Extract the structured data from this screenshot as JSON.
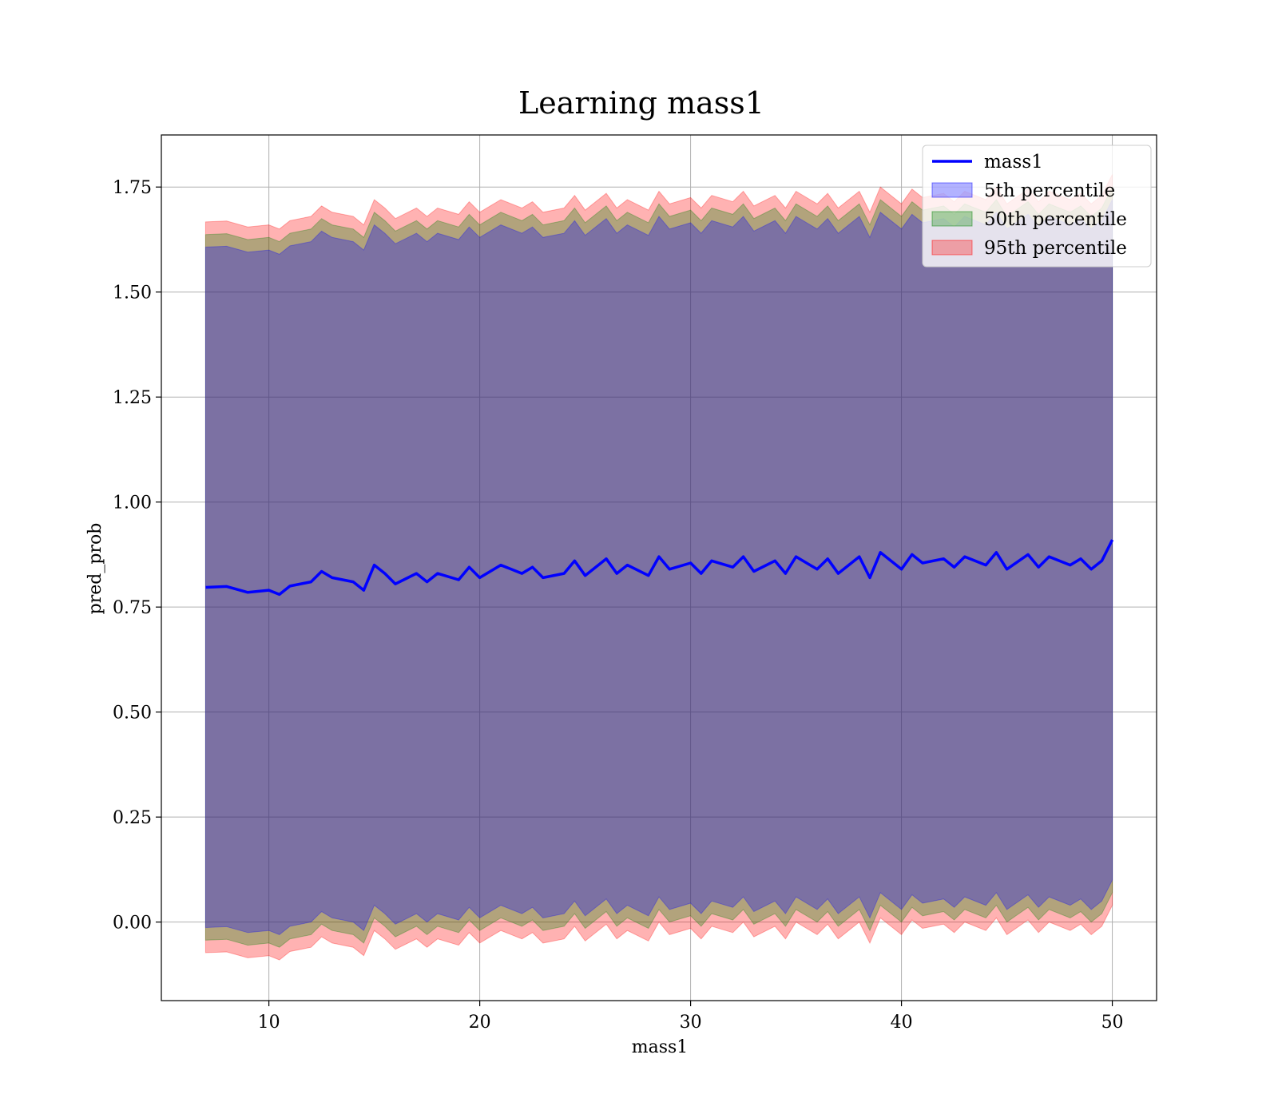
{
  "chart_data": {
    "type": "area",
    "title": "Learning mass1",
    "xlabel": "mass1",
    "ylabel": "pred_prob",
    "xlim": [
      4.9,
      52.1
    ],
    "ylim": [
      -0.187,
      1.874
    ],
    "xticks": [
      10,
      20,
      30,
      40,
      50
    ],
    "xtick_labels": [
      "10",
      "20",
      "30",
      "40",
      "50"
    ],
    "yticks": [
      0.0,
      0.25,
      0.5,
      0.75,
      1.0,
      1.25,
      1.5,
      1.75
    ],
    "ytick_labels": [
      "0.00",
      "0.25",
      "0.50",
      "0.75",
      "1.00",
      "1.25",
      "1.50",
      "1.75"
    ],
    "grid": true,
    "legend_position": "top-right",
    "x": [
      7,
      8,
      9,
      10,
      10.5,
      11,
      12,
      12.5,
      13,
      14,
      14.5,
      15,
      15.5,
      16,
      17,
      17.5,
      18,
      19,
      19.5,
      20,
      21,
      22,
      22.5,
      23,
      24,
      24.5,
      25,
      26,
      26.5,
      27,
      28,
      28.5,
      29,
      30,
      30.5,
      31,
      32,
      32.5,
      33,
      34,
      34.5,
      35,
      36,
      36.5,
      37,
      38,
      38.5,
      39,
      40,
      40.5,
      41,
      42,
      42.5,
      43,
      44,
      44.5,
      45,
      46,
      46.5,
      47,
      48,
      48.5,
      49,
      49.5,
      50
    ],
    "series": [
      {
        "name": "mass1",
        "kind": "line",
        "color": "#0000ff",
        "values": [
          0.797,
          0.799,
          0.785,
          0.79,
          0.78,
          0.8,
          0.81,
          0.835,
          0.82,
          0.81,
          0.79,
          0.85,
          0.83,
          0.805,
          0.83,
          0.81,
          0.83,
          0.815,
          0.845,
          0.82,
          0.85,
          0.83,
          0.845,
          0.82,
          0.83,
          0.86,
          0.825,
          0.865,
          0.83,
          0.85,
          0.825,
          0.87,
          0.84,
          0.855,
          0.83,
          0.86,
          0.845,
          0.87,
          0.835,
          0.86,
          0.83,
          0.87,
          0.84,
          0.865,
          0.83,
          0.87,
          0.82,
          0.88,
          0.84,
          0.875,
          0.855,
          0.865,
          0.845,
          0.87,
          0.85,
          0.88,
          0.84,
          0.875,
          0.845,
          0.87,
          0.85,
          0.865,
          0.84,
          0.86,
          0.91
        ]
      },
      {
        "name": "5th percentile",
        "kind": "band",
        "color": "#0000ff",
        "spread": 0.81
      },
      {
        "name": "50th percentile",
        "kind": "band",
        "color": "#008000",
        "spread": 0.84
      },
      {
        "name": "95th percentile",
        "kind": "band",
        "color": "#ff0000",
        "spread": 0.87
      }
    ]
  }
}
